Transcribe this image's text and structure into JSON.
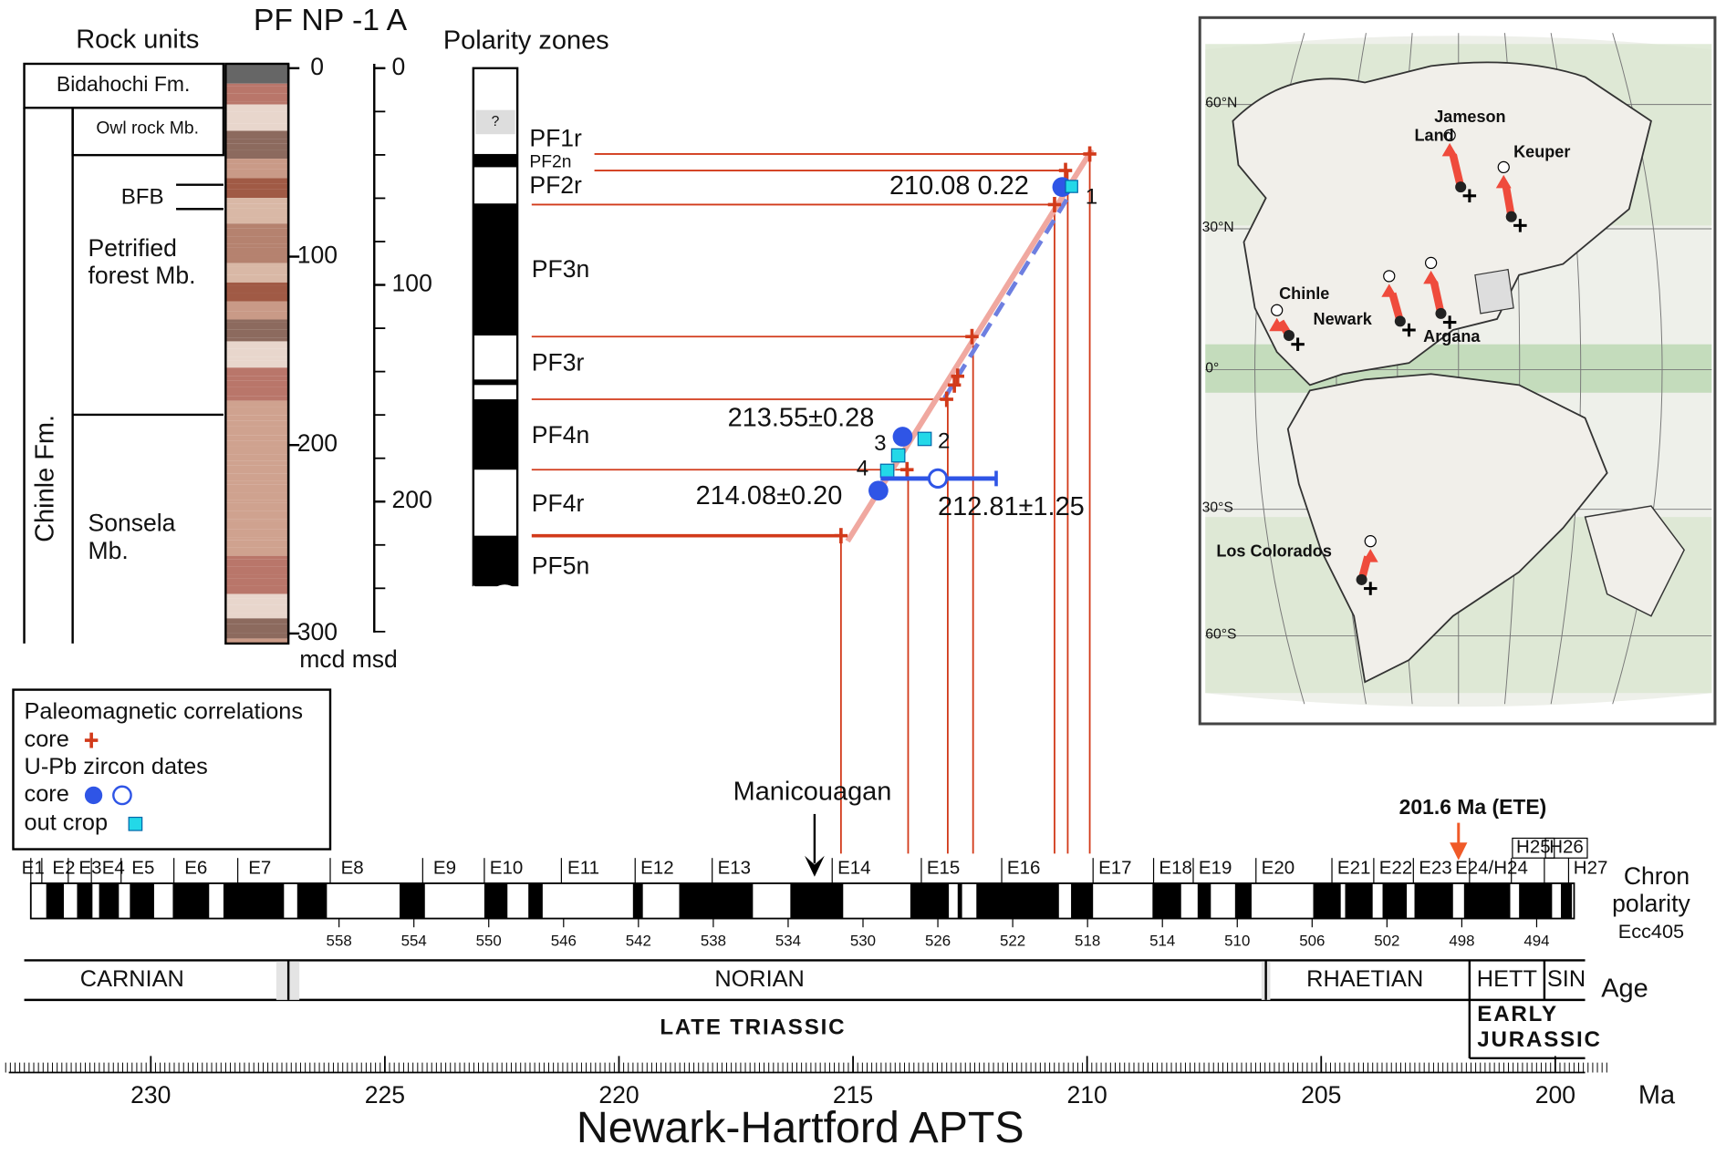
{
  "figure": {
    "rock_units": {
      "title": "Rock units",
      "core": "PF NP -1 A",
      "bidahochi": "Bidahochi Fm.",
      "owl_rock": "Owl rock Mb.",
      "bfb": "BFB",
      "petrified_forest": [
        "Petrified",
        "forest Mb."
      ],
      "chinle": "Chinle Fm.",
      "sonsela": [
        "Sonsela",
        "Mb."
      ]
    },
    "depth": {
      "mcd_ticks": [
        0,
        100,
        200,
        300
      ],
      "msd_ticks": [
        0,
        100,
        200
      ],
      "units": "mcd msd"
    },
    "polarity": {
      "title": "Polarity zones",
      "unknown": "?",
      "zones": [
        "PF1r",
        "PF2n",
        "PF2r",
        "PF3n",
        "PF3r",
        "PF4n",
        "PF4r",
        "PF5n"
      ]
    },
    "dates": {
      "labels": [
        "210.08 0.22",
        "213.55±0.28",
        "214.08±0.20",
        "212.81±1.25"
      ],
      "samples": [
        "1",
        "2",
        "3",
        "4"
      ]
    },
    "legend": {
      "title": "Paleomagnetic correlations",
      "rows": [
        "core",
        "U-Pb zircon dates",
        "core",
        "out crop"
      ]
    },
    "timescale": {
      "event": "Manicouagan",
      "ete": "201.6 Ma (ETE)",
      "chrons": [
        "E1",
        "E2",
        "E3",
        "E4",
        "E5",
        "E6",
        "E7",
        "E8",
        "E9",
        "E10",
        "E11",
        "E12",
        "E13",
        "E14",
        "E15",
        "E16",
        "E17",
        "E18",
        "E19",
        "E20",
        "E21",
        "E22",
        "E23",
        "E24/H24",
        "H25",
        "H26",
        "H27"
      ],
      "chron_label": [
        "Chron",
        "polarity",
        "Ecc405"
      ],
      "cycles": [
        558,
        554,
        550,
        546,
        542,
        538,
        534,
        530,
        526,
        522,
        518,
        514,
        510,
        506,
        502,
        498,
        494
      ],
      "stages": [
        "CARNIAN",
        "NORIAN",
        "RHAETIAN",
        "HETT",
        "SIN"
      ],
      "age_label": "Age",
      "late_triassic": "LATE TRIASSIC",
      "early_jurassic": [
        "EARLY",
        "JURASSIC"
      ],
      "ma_ticks": [
        230,
        225,
        220,
        215,
        210,
        205,
        200
      ],
      "ma_label": "Ma",
      "title": "Newark-Hartford APTS"
    },
    "map": {
      "latitudes": [
        "60°N",
        "30°N",
        "0°",
        "30°S",
        "60°S"
      ],
      "localities": [
        "Jameson",
        "Land",
        "Keuper",
        "Chinle",
        "Newark",
        "Argana",
        "Los Colorados"
      ]
    }
  }
}
